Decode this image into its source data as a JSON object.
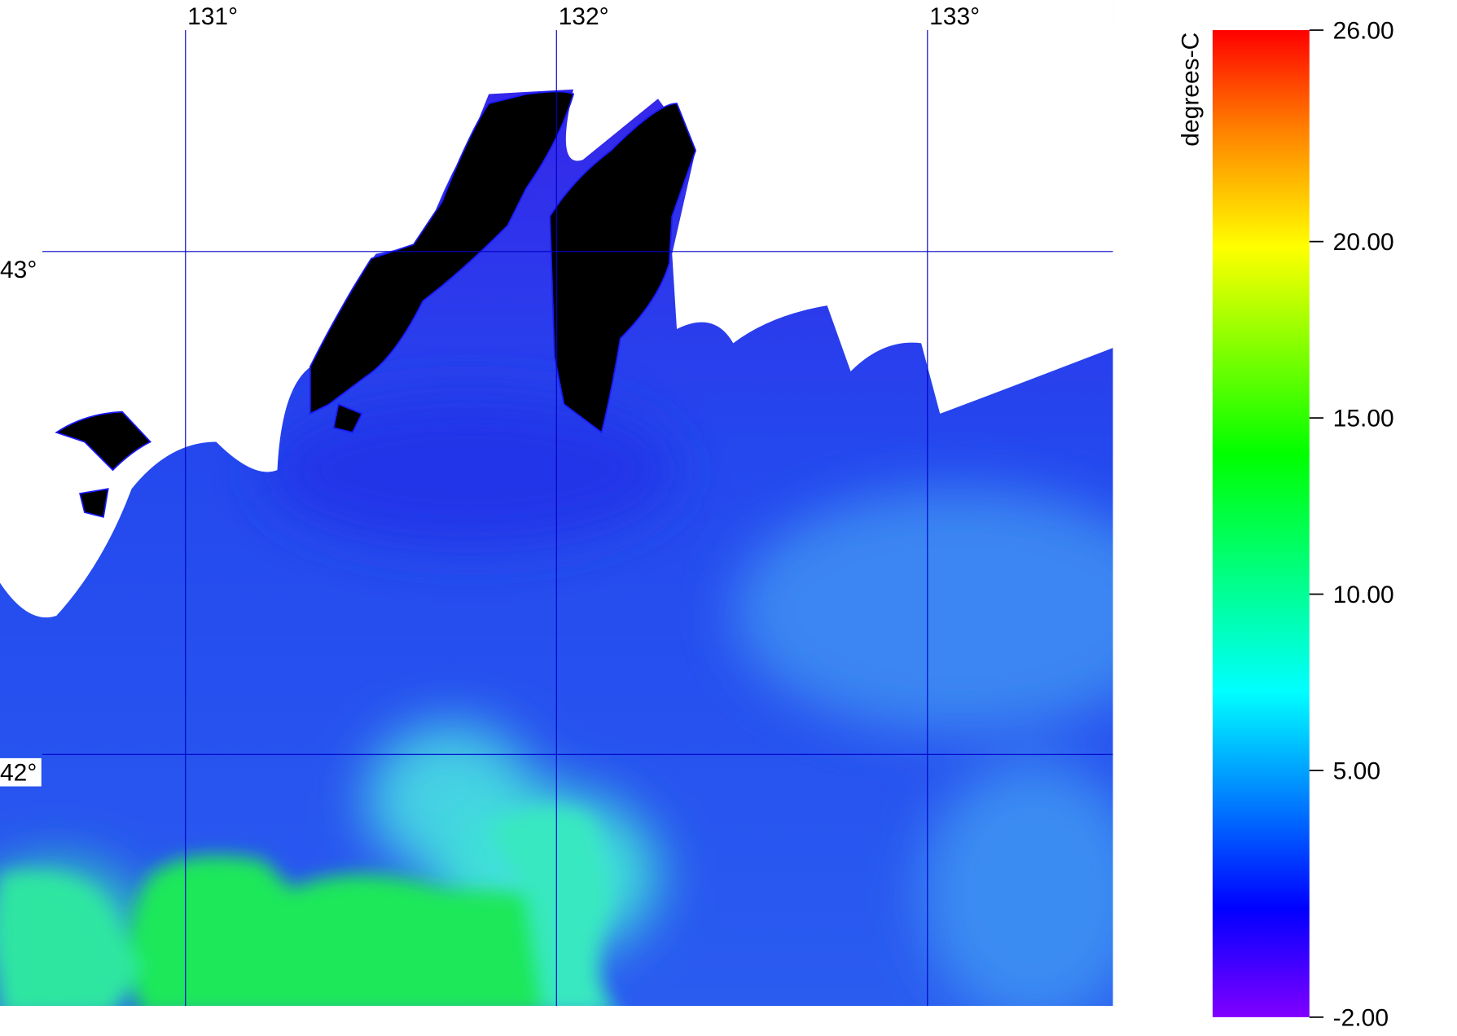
{
  "map": {
    "xlim": [
      130.5,
      133.5
    ],
    "ylim": [
      41.5,
      43.5
    ],
    "lon_lines": [
      {
        "value": 131,
        "label": "131°"
      },
      {
        "value": 132,
        "label": "132°"
      },
      {
        "value": 133,
        "label": "133°"
      }
    ],
    "lat_lines": [
      {
        "value": 43,
        "label": "43°"
      },
      {
        "value": 42,
        "label": "42°"
      }
    ]
  },
  "colorbar": {
    "label": "degrees-C",
    "range": [
      -2,
      26
    ],
    "ticks": [
      {
        "value": 26,
        "label": "26.00"
      },
      {
        "value": 20,
        "label": "20.00"
      },
      {
        "value": 15,
        "label": "15.00"
      },
      {
        "value": 10,
        "label": "10.00"
      },
      {
        "value": 5,
        "label": "5.00"
      },
      {
        "value": -2,
        "label": "-2.00"
      }
    ]
  }
}
